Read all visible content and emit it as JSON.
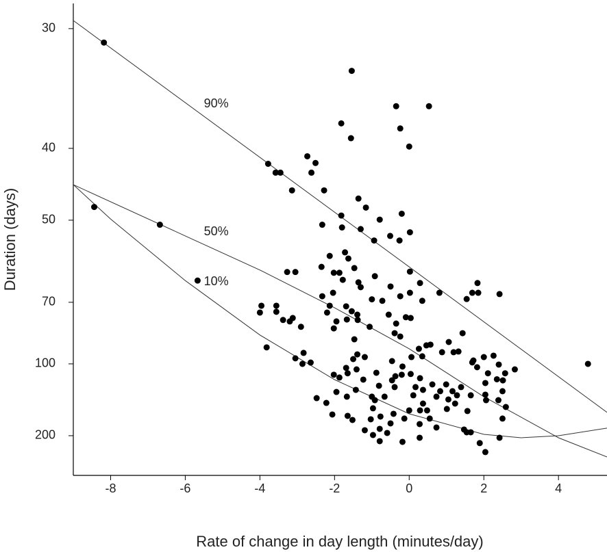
{
  "chart_data": {
    "type": "scatter",
    "x_label": "Rate of change in day length (minutes/day)",
    "y_label": "Duration (days)",
    "yscale": "reciprocal",
    "y_inverted": true,
    "xlim": [
      -9,
      5.3
    ],
    "ylim": [
      28.5,
      447
    ],
    "xticks": [
      -8,
      -6,
      -4,
      -2,
      0,
      2,
      4
    ],
    "yticks": [
      30,
      40,
      50,
      70,
      100,
      200
    ],
    "color": "#000000",
    "x": [
      -8.18,
      -8.44,
      -6.68,
      -5.67,
      4.79,
      -1.54,
      -0.35,
      0.53,
      -1.82,
      -0.24,
      -1.56,
      0,
      -2.73,
      -3.78,
      -2.51,
      -2.62,
      -3.58,
      -3.45,
      -3.14,
      -2.28,
      -1.36,
      -1.16,
      -0.2,
      -1.82,
      -0.79,
      -2.33,
      -1.8,
      -1.3,
      -0.51,
      0.02,
      -0.26,
      -0.94,
      -1.72,
      -2.13,
      -1.63,
      -2.35,
      -3.27,
      -3.05,
      0.02,
      -2.02,
      -1.87,
      -1.47,
      -0.92,
      -1.78,
      -1.36,
      -1.3,
      -0.5,
      -2.04,
      0.29,
      0.81,
      0.02,
      1.54,
      1.69,
      1.85,
      2.42,
      1.83,
      -2.33,
      -0.24,
      0.35,
      -0.72,
      -1.0,
      -3.96,
      -3.56,
      -4.0,
      -3.56,
      -2.13,
      -1.69,
      -1.54,
      -2.2,
      -1.39,
      -1.67,
      -1.38,
      -1.95,
      -3.38,
      -3.12,
      -3.2,
      -0.55,
      -0.09,
      0.04,
      -0.35,
      -1.06,
      -2.9,
      -2.02,
      -0.39,
      -0.24,
      -1.47,
      0.57,
      0.46,
      1.06,
      1.43,
      0.88,
      0.26,
      -3.82,
      -2.83,
      -3.05,
      -2.86,
      -1.39,
      -1.5,
      -1.19,
      -0.46,
      1.19,
      1.32,
      2.0,
      2.26,
      1.72,
      1.69,
      1.82,
      2.4,
      2.83,
      2.57,
      2.11,
      2.35,
      2.51,
      2.5,
      2.04,
      2.04,
      2.39,
      2.59,
      2.06,
      2.5,
      2.42,
      2.04,
      1.89,
      1.54,
      1.47,
      1.65,
      0.73,
      0.28,
      -0.18,
      -0.79,
      -0.79,
      -0.59,
      -0.97,
      -1.19,
      -0.5,
      -0.42,
      -0.77,
      -1.03,
      -1.52,
      -1.65,
      -2.06,
      -1.95,
      -2.48,
      -2.22,
      -1.67,
      -1.43,
      -1.23,
      -0.88,
      -0.81,
      -1.0,
      -0.66,
      -0.39,
      -0.46,
      -0.2,
      0.04,
      0.29,
      0.17,
      0.11,
      0.37,
      0.62,
      0.73,
      0.83,
      0.99,
      1.16,
      1.28,
      1.39,
      1.05,
      1.01,
      1.23,
      1.65,
      1.56,
      0.37,
      0.48,
      0.55,
      0,
      0.29,
      -0.13,
      0.28,
      -0.97,
      -0.92,
      -1.65,
      -1.69,
      -1.41,
      -1.87,
      -2.02,
      -2.64,
      0.35,
      0.06,
      -0.18,
      -0.37
    ],
    "values": [
      30.9,
      47.8,
      50.8,
      63.3,
      100,
      32.9,
      35.8,
      35.8,
      37.4,
      37.9,
      38.9,
      39.8,
      40.9,
      41.8,
      41.7,
      42.9,
      42.9,
      42.9,
      45.3,
      45.3,
      46.5,
      47.9,
      48.9,
      49.2,
      49.9,
      50.8,
      51.3,
      51.6,
      52.9,
      52.2,
      53.8,
      53.8,
      56.3,
      57.1,
      57.7,
      59.7,
      61,
      61,
      60.9,
      61.2,
      61.2,
      60,
      62.1,
      63.1,
      63.8,
      65.2,
      65,
      66.9,
      64,
      66.9,
      66.9,
      68.9,
      66.9,
      66.9,
      67.3,
      64,
      68,
      68,
      69.5,
      69.5,
      69,
      71.2,
      71.2,
      73.7,
      73.4,
      71.2,
      71.4,
      73.2,
      73.7,
      74.5,
      76.4,
      76.6,
      77.2,
      76.6,
      75.8,
      77.2,
      74.5,
      75.5,
      75.8,
      78.1,
      79.5,
      79.5,
      80.2,
      82.4,
      84,
      85.4,
      88.2,
      88.6,
      86.8,
      82.4,
      92.5,
      90.5,
      89.7,
      92.9,
      96.3,
      100,
      93.8,
      96.8,
      95.5,
      98.1,
      92.5,
      92.1,
      95.5,
      94.6,
      97.7,
      99,
      102.4,
      100.5,
      104,
      107,
      107,
      112,
      113,
      123.5,
      115.4,
      127.3,
      133.8,
      142.9,
      133.8,
      161.5,
      205.9,
      259,
      223,
      190.9,
      184.2,
      190.9,
      179.5,
      205.9,
      218.8,
      216.5,
      182.6,
      192.7,
      198.1,
      185.8,
      170.7,
      153.3,
      157.9,
      162.8,
      164.1,
      156.7,
      154.4,
      124.3,
      131.3,
      137.3,
      129.6,
      122.1,
      112.3,
      106.6,
      118,
      129.6,
      129.6,
      119.3,
      112.9,
      108.2,
      107.6,
      111.1,
      119.3,
      128,
      122.1,
      116.7,
      129.6,
      123.5,
      116.7,
      123.5,
      128,
      119.3,
      132.9,
      145.8,
      138.2,
      128,
      148.9,
      138.2,
      147.9,
      161.5,
      147.9,
      147.9,
      161.5,
      172.1,
      144.8,
      133.8,
      107,
      102.9,
      104,
      110.5,
      108.2,
      99.1,
      95,
      95.5,
      101.9,
      109.4
    ],
    "curves": [
      {
        "name": "90%",
        "x": [
          -9,
          0,
          5.3
        ],
        "values": [
          29.5,
          59.7,
          151
        ]
      },
      {
        "name": "50%",
        "x": [
          -9,
          -6,
          -4,
          -2,
          0,
          2,
          4,
          5.3
        ],
        "values": [
          44.5,
          52.9,
          60.5,
          71.9,
          90.5,
          129.6,
          205.9,
          283.8
        ]
      },
      {
        "name": "10%",
        "x": [
          -9,
          -8,
          -6,
          -4,
          -2,
          0,
          2,
          3,
          4,
          5.3
        ],
        "values": [
          44.5,
          49.8,
          63.3,
          83.3,
          112.3,
          153.3,
          196.3,
          205.9,
          200,
          181
        ]
      }
    ]
  }
}
